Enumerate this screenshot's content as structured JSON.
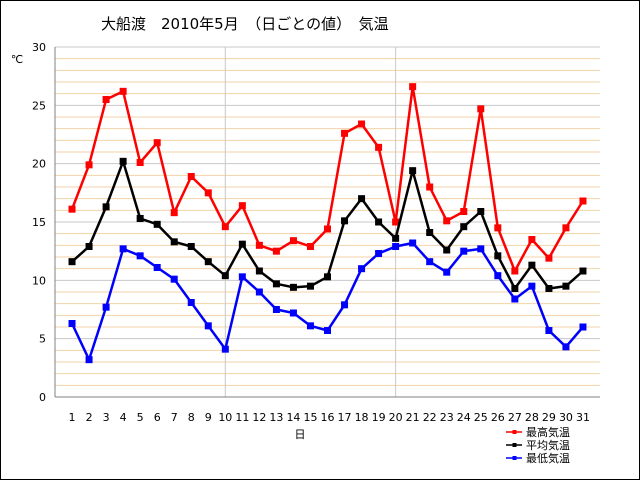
{
  "title": "大船渡　2010年5月　（日ごとの値）　気温",
  "chart_data": {
    "type": "line",
    "title": "大船渡　2010年5月　（日ごとの値）　気温",
    "xlabel": "日",
    "ylabel": "℃",
    "ylim": [
      0,
      30
    ],
    "yticks": [
      0,
      5,
      10,
      15,
      20,
      25,
      30
    ],
    "x": [
      1,
      2,
      3,
      4,
      5,
      6,
      7,
      8,
      9,
      10,
      11,
      12,
      13,
      14,
      15,
      16,
      17,
      18,
      19,
      20,
      21,
      22,
      23,
      24,
      25,
      26,
      27,
      28,
      29,
      30,
      31
    ],
    "grid": true,
    "legend_position": "bottom-right",
    "series": [
      {
        "name": "最高気温",
        "color": "#ff0000",
        "values": [
          16.1,
          19.9,
          25.5,
          26.2,
          20.1,
          21.8,
          15.8,
          18.9,
          17.5,
          14.6,
          16.4,
          13.0,
          12.5,
          13.4,
          12.9,
          14.4,
          22.6,
          23.4,
          21.4,
          15.0,
          26.6,
          18.0,
          15.1,
          15.9,
          24.7,
          14.5,
          10.8,
          13.5,
          11.9,
          14.5,
          16.8
        ]
      },
      {
        "name": "平均気温",
        "color": "#000000",
        "values": [
          11.6,
          12.9,
          16.3,
          20.2,
          15.3,
          14.8,
          13.3,
          12.9,
          11.6,
          10.4,
          13.1,
          10.8,
          9.7,
          9.4,
          9.5,
          10.3,
          15.1,
          17.0,
          15.0,
          13.6,
          19.4,
          14.1,
          12.6,
          14.6,
          15.9,
          12.1,
          9.3,
          11.3,
          9.3,
          9.5,
          10.8
        ]
      },
      {
        "name": "最低気温",
        "color": "#0000ff",
        "values": [
          6.3,
          3.2,
          7.7,
          12.7,
          12.1,
          11.1,
          10.1,
          8.1,
          6.1,
          4.1,
          10.3,
          9.0,
          7.5,
          7.2,
          6.1,
          5.7,
          7.9,
          11.0,
          12.3,
          12.9,
          13.2,
          11.6,
          10.7,
          12.5,
          12.7,
          10.4,
          8.4,
          9.5,
          5.7,
          4.3,
          6.0
        ]
      }
    ]
  }
}
